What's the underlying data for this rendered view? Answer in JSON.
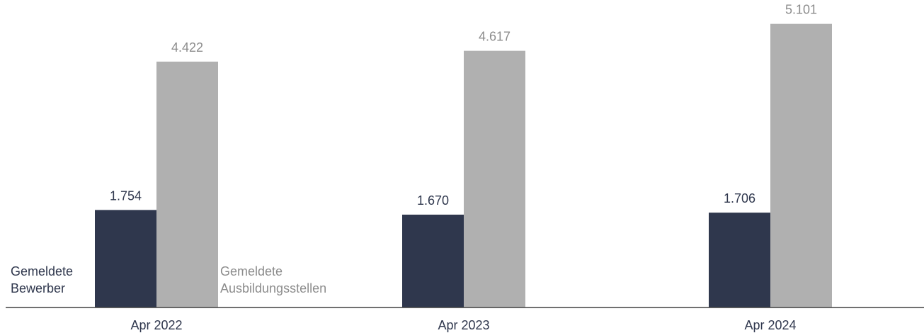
{
  "chart_data": {
    "type": "bar",
    "categories": [
      "Apr 2022",
      "Apr 2023",
      "Apr 2024"
    ],
    "series": [
      {
        "name": "Gemeldete Bewerber",
        "name_lines": [
          "Gemeldete",
          "Bewerber"
        ],
        "color": "#2f374d",
        "label_color": "#2f374d",
        "values": [
          1754,
          1670,
          1706
        ],
        "value_labels": [
          "1.754",
          "1.670",
          "1.706"
        ]
      },
      {
        "name": "Gemeldete Ausbildungsstellen",
        "name_lines": [
          "Gemeldete",
          "Ausbildungsstellen"
        ],
        "color": "#b0b0b0",
        "label_color": "#8c8c8c",
        "values": [
          4422,
          4617,
          5101
        ],
        "value_labels": [
          "4.422",
          "4.617",
          "5.101"
        ]
      }
    ],
    "ylim": [
      0,
      5250
    ],
    "grid": false,
    "legend": "inline-left-of-first-group",
    "axis_color": "#404040",
    "category_label_color": "#2f374d"
  }
}
